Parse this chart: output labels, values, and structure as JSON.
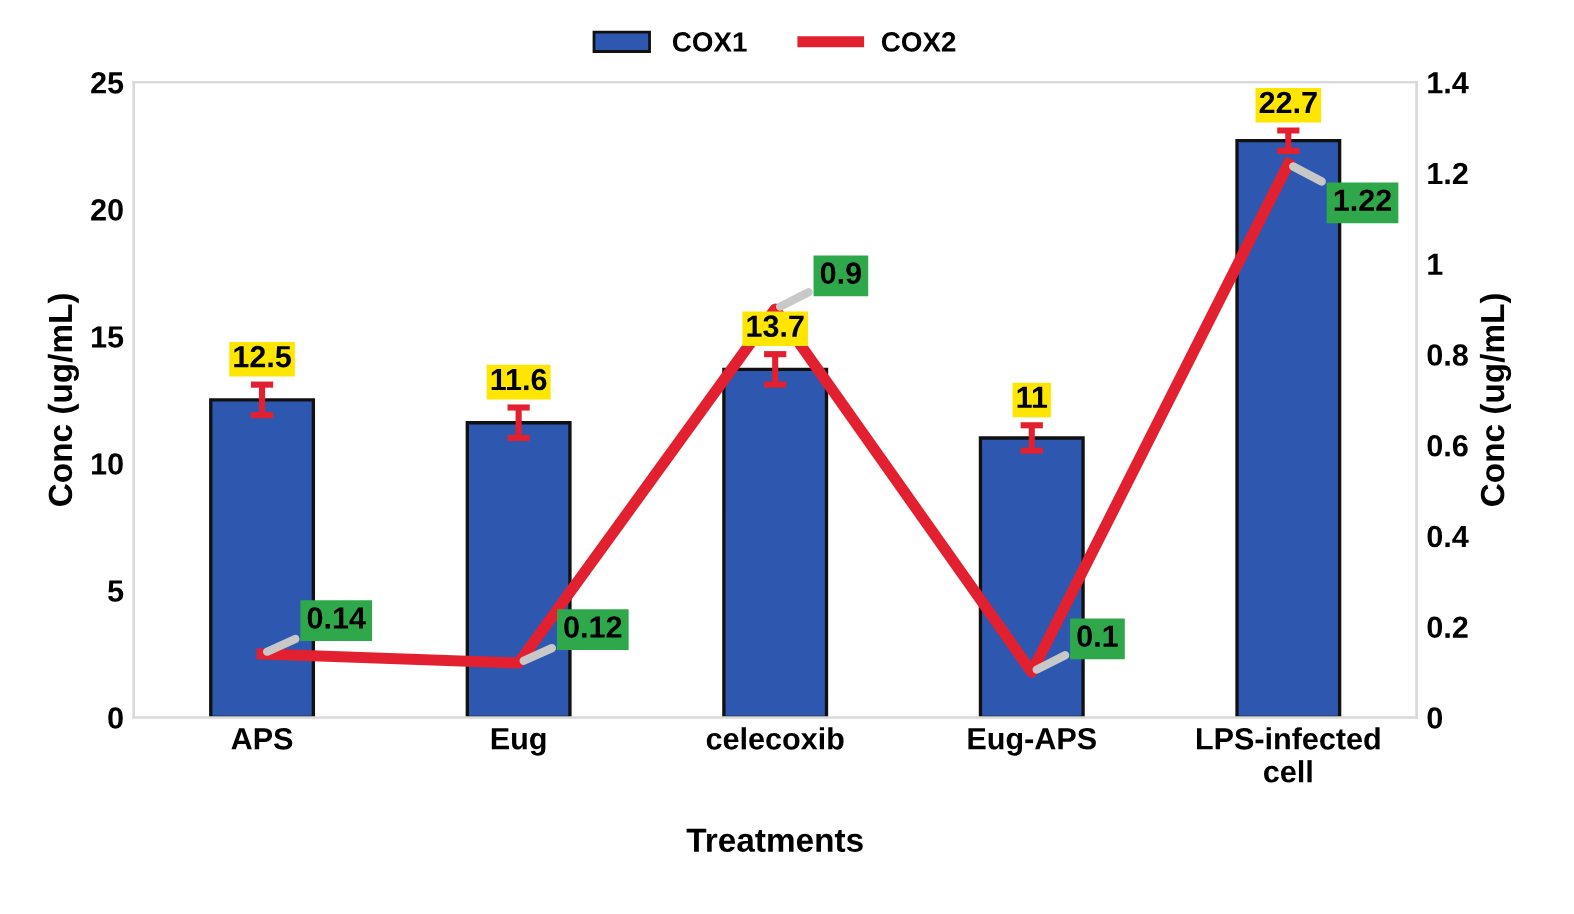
{
  "chart_data": {
    "type": "bar",
    "xlabel": "Treatments",
    "ylabel": "Conc (ug/mL)",
    "y2label": "Conc (ug/mL)",
    "categories": [
      "APS",
      "Eug",
      "celecoxib",
      "Eug-APS",
      "LPS-infected cell"
    ],
    "series": [
      {
        "name": "COX1",
        "color": "#2e58b0",
        "values": [
          12.5,
          11.6,
          13.7,
          11,
          22.7
        ],
        "errors": [
          0.6,
          0.6,
          0.6,
          0.5,
          0.4
        ]
      },
      {
        "name": "COX2",
        "type": "line",
        "axis": "y2",
        "color": "#e3202f",
        "values": [
          0.14,
          0.12,
          0.9,
          0.1,
          1.22
        ]
      }
    ],
    "ylim": [
      0,
      25
    ],
    "yticks": [
      0,
      5,
      10,
      15,
      20,
      25
    ],
    "y2lim": [
      0,
      1.4
    ],
    "y2ticks": [
      0,
      0.2,
      0.4,
      0.6,
      0.8,
      1,
      1.2,
      1.4
    ],
    "data_labels": true,
    "grid": false,
    "legend": "top",
    "marker": "none",
    "line_style": "solid"
  }
}
